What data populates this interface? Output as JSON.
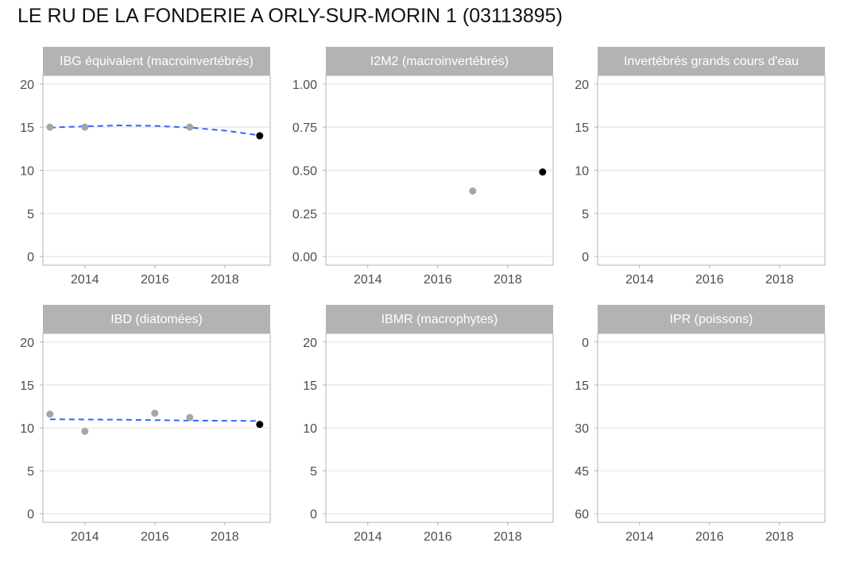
{
  "page": {
    "title": "LE RU DE LA FONDERIE A ORLY-SUR-MORIN 1 (03113895)"
  },
  "colors": {
    "strip": "#b3b3b3",
    "strip_text": "#ffffff",
    "grid": "#e0e0e0",
    "border": "#b3b3b3",
    "point_past": "#a6a6a6",
    "point_last": "#000000",
    "trend": "#3366ff",
    "tick_text": "#4d4d4d"
  },
  "chart_data": [
    {
      "type": "scatter",
      "title": "IBG équivalent (macroinvertébrés)",
      "xlim": [
        2012.8,
        2019.3
      ],
      "x_ticks": [
        2014,
        2016,
        2018
      ],
      "x_tick_labels": [
        "2014",
        "2016",
        "2018"
      ],
      "ylim": [
        -1,
        21
      ],
      "y_ticks": [
        0,
        5,
        10,
        15,
        20
      ],
      "y_tick_labels": [
        "0",
        "5",
        "10",
        "15",
        "20"
      ],
      "reversed": false,
      "points": [
        {
          "x": 2013,
          "y": 15,
          "last": false
        },
        {
          "x": 2014,
          "y": 15,
          "last": false
        },
        {
          "x": 2017,
          "y": 15,
          "last": false
        },
        {
          "x": 2019,
          "y": 14,
          "last": true
        }
      ],
      "trend": [
        [
          2013,
          14.95
        ],
        [
          2014,
          15.1
        ],
        [
          2015,
          15.2
        ],
        [
          2016,
          15.15
        ],
        [
          2017,
          14.95
        ],
        [
          2018,
          14.6
        ],
        [
          2019,
          14.05
        ]
      ]
    },
    {
      "type": "scatter",
      "title": "I2M2 (macroinvertébrés)",
      "xlim": [
        2012.8,
        2019.3
      ],
      "x_ticks": [
        2014,
        2016,
        2018
      ],
      "x_tick_labels": [
        "2014",
        "2016",
        "2018"
      ],
      "ylim": [
        -0.05,
        1.05
      ],
      "y_ticks": [
        0,
        0.25,
        0.5,
        0.75,
        1
      ],
      "y_tick_labels": [
        "0.00",
        "0.25",
        "0.50",
        "0.75",
        "1.00"
      ],
      "reversed": false,
      "points": [
        {
          "x": 2017,
          "y": 0.38,
          "last": false
        },
        {
          "x": 2019,
          "y": 0.49,
          "last": true
        }
      ],
      "trend": []
    },
    {
      "type": "scatter",
      "title": "Invertébrés grands cours d'eau",
      "xlim": [
        2012.8,
        2019.3
      ],
      "x_ticks": [
        2014,
        2016,
        2018
      ],
      "x_tick_labels": [
        "2014",
        "2016",
        "2018"
      ],
      "ylim": [
        -1,
        21
      ],
      "y_ticks": [
        0,
        5,
        10,
        15,
        20
      ],
      "y_tick_labels": [
        "0",
        "5",
        "10",
        "15",
        "20"
      ],
      "reversed": false,
      "points": [],
      "trend": []
    },
    {
      "type": "scatter",
      "title": "IBD (diatomées)",
      "xlim": [
        2012.8,
        2019.3
      ],
      "x_ticks": [
        2014,
        2016,
        2018
      ],
      "x_tick_labels": [
        "2014",
        "2016",
        "2018"
      ],
      "ylim": [
        -1,
        21
      ],
      "y_ticks": [
        0,
        5,
        10,
        15,
        20
      ],
      "y_tick_labels": [
        "0",
        "5",
        "10",
        "15",
        "20"
      ],
      "reversed": false,
      "points": [
        {
          "x": 2013,
          "y": 11.6,
          "last": false
        },
        {
          "x": 2014,
          "y": 9.6,
          "last": false
        },
        {
          "x": 2016,
          "y": 11.7,
          "last": false
        },
        {
          "x": 2017,
          "y": 11.2,
          "last": false
        },
        {
          "x": 2019,
          "y": 10.4,
          "last": true
        }
      ],
      "trend": [
        [
          2013,
          11.0
        ],
        [
          2015,
          10.95
        ],
        [
          2017,
          10.85
        ],
        [
          2019,
          10.8
        ]
      ]
    },
    {
      "type": "scatter",
      "title": "IBMR (macrophytes)",
      "xlim": [
        2012.8,
        2019.3
      ],
      "x_ticks": [
        2014,
        2016,
        2018
      ],
      "x_tick_labels": [
        "2014",
        "2016",
        "2018"
      ],
      "ylim": [
        -1,
        21
      ],
      "y_ticks": [
        0,
        5,
        10,
        15,
        20
      ],
      "y_tick_labels": [
        "0",
        "5",
        "10",
        "15",
        "20"
      ],
      "reversed": false,
      "points": [],
      "trend": []
    },
    {
      "type": "scatter",
      "title": "IPR (poissons)",
      "xlim": [
        2012.8,
        2019.3
      ],
      "x_ticks": [
        2014,
        2016,
        2018
      ],
      "x_tick_labels": [
        "2014",
        "2016",
        "2018"
      ],
      "ylim": [
        -3,
        63
      ],
      "y_ticks": [
        0,
        15,
        30,
        45,
        60
      ],
      "y_tick_labels": [
        "0",
        "15",
        "30",
        "45",
        "60"
      ],
      "reversed": true,
      "points": [],
      "trend": []
    }
  ]
}
